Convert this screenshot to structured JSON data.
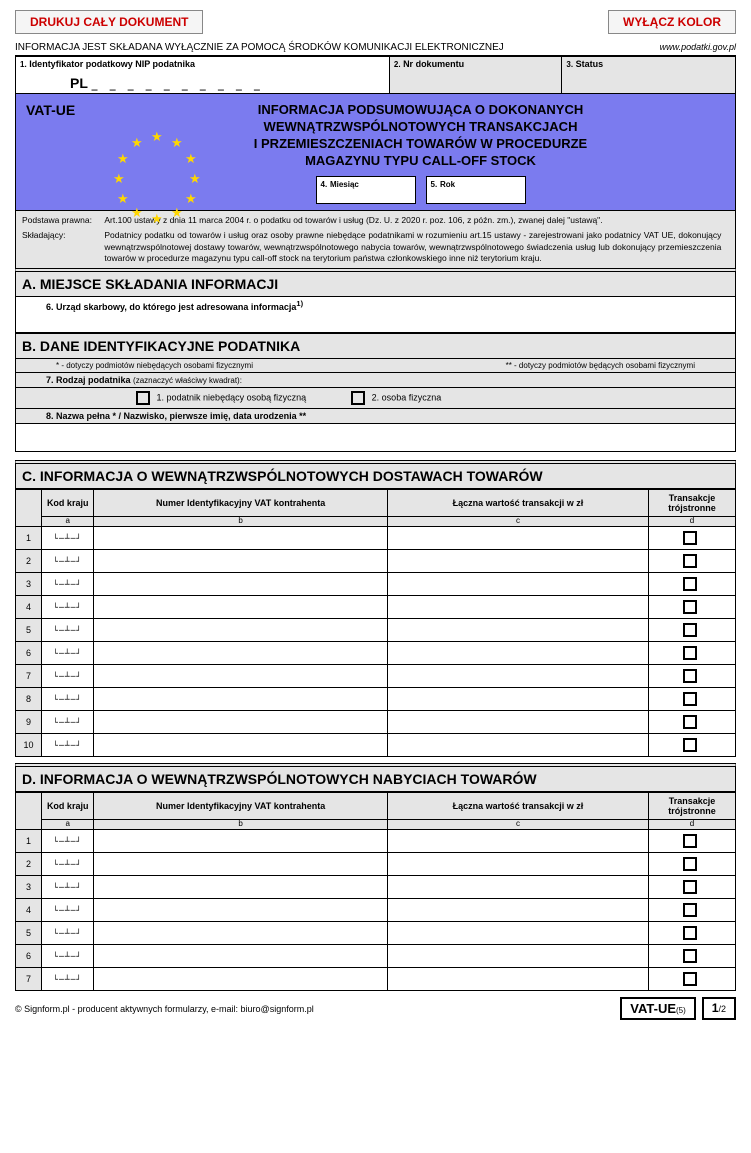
{
  "buttons": {
    "print": "DRUKUJ CAŁY DOKUMENT",
    "color_off": "WYŁĄCZ KOLOR"
  },
  "info_line": {
    "left": "INFORMACJA JEST SKŁADANA WYŁĄCZNIE ZA POMOCĄ ŚRODKÓW KOMUNIKACJI ELEKTRONICZNEJ",
    "right": "www.podatki.gov.pl"
  },
  "header_cells": {
    "c1": {
      "num": "1.",
      "label": "Identyfikator podatkowy NIP podatnika",
      "prefix": "PL"
    },
    "c2": {
      "num": "2.",
      "label": "Nr dokumentu"
    },
    "c3": {
      "num": "3.",
      "label": "Status"
    }
  },
  "banner": {
    "code": "VAT-UE",
    "title1": "INFORMACJA PODSUMOWUJĄCA O DOKONANYCH",
    "title2": "WEWNĄTRZWSPÓLNOTOWYCH TRANSAKCJACH",
    "title3": "I PRZEMIESZCZENIACH TOWARÓW W PROCEDURZE",
    "title4": "MAGAZYNU TYPU CALL-OFF STOCK",
    "month": {
      "num": "4.",
      "label": "Miesiąc"
    },
    "year": {
      "num": "5.",
      "label": "Rok"
    },
    "star_color": "#ffd700",
    "bg_color": "#7b7bef"
  },
  "legal": {
    "pp_label": "Podstawa prawna:",
    "pp_text": "Art.100 ustawy z dnia 11 marca 2004 r. o podatku od towarów i usług (Dz. U. z 2020 r. poz. 106, z późn. zm.), zwanej dalej \"ustawą\".",
    "sk_label": "Składający:",
    "sk_text": "Podatnicy podatku od towarów i usług oraz osoby prawne niebędące podatnikami w rozumieniu art.15 ustawy - zarejestrowani jako podatnicy VAT UE, dokonujący wewnątrzwspólnotowej dostawy towarów, wewnątrzwspólnotowego nabycia towarów, wewnątrzwspólnotowego świadczenia usług lub dokonujący przemieszczenia towarów w procedurze magazynu typu call-off stock na terytorium państwa członkowskiego inne niż terytorium kraju."
  },
  "section_a": {
    "title": "A. MIEJSCE SKŁADANIA INFORMACJI",
    "field6": "6. Urząd skarbowy, do którego jest adresowana informacja",
    "sup": "1)"
  },
  "section_b": {
    "title": "B. DANE IDENTYFIKACYJNE PODATNIKA",
    "legend1": "* - dotyczy podmiotów niebędących osobami fizycznymi",
    "legend2": "** - dotyczy podmiotów będących osobami fizycznymi",
    "field7": "7. Rodzaj podatnika",
    "field7_note": "(zaznaczyć właściwy kwadrat):",
    "opt1": "1. podatnik niebędący osobą fizyczną",
    "opt2": "2. osoba fizyczna",
    "field8": "8. Nazwa pełna * / Nazwisko, pierwsze imię, data urodzenia **"
  },
  "section_c": {
    "title": "C. INFORMACJA O WEWNĄTRZWSPÓLNOTOWYCH DOSTAWACH TOWARÓW"
  },
  "section_d": {
    "title": "D. INFORMACJA O WEWNĄTRZWSPÓLNOTOWYCH NABYCIACH TOWARÓW"
  },
  "table_headers": {
    "kraj": "Kod kraju",
    "vat": "Numer Identyfikacyjny VAT kontrahenta",
    "wart": "Łączna wartość transakcji w zł",
    "troj": "Transakcje trójstronne",
    "sub": {
      "a": "a",
      "b": "b",
      "c": "c",
      "d": "d"
    }
  },
  "table_c_rows": 10,
  "table_d_rows": 7,
  "footer": {
    "copyright": "© Signform.pl - producent aktywnych formularzy, e-mail: biuro@signform.pl",
    "code": "VAT-UE",
    "ver": "(5)",
    "page": "1",
    "total": "/2"
  },
  "underlines": "_ _ _ _ _ _ _ _ _ _",
  "kraj_under": "└─┴─┘"
}
